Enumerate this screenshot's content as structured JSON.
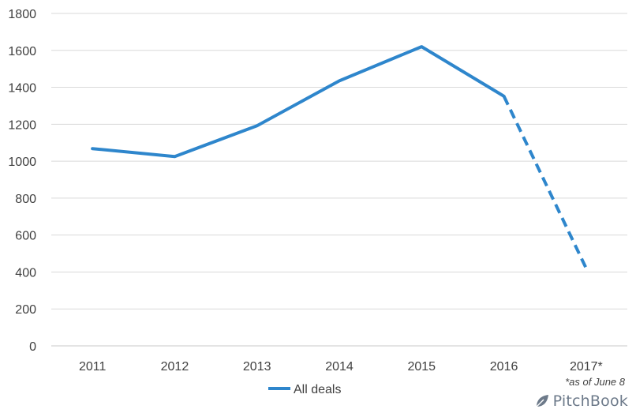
{
  "chart_data": {
    "type": "line",
    "title": "",
    "xlabel": "",
    "ylabel": "",
    "categories": [
      "2011",
      "2012",
      "2013",
      "2014",
      "2015",
      "2016",
      "2017*"
    ],
    "series": [
      {
        "name": "All deals",
        "values": [
          1068,
          1025,
          1192,
          1435,
          1620,
          1352,
          420
        ],
        "color": "#2e86cc",
        "dashed_segment": "2016 to 2017*"
      }
    ],
    "ylim": [
      0,
      1800
    ],
    "yticks": [
      0,
      200,
      400,
      600,
      800,
      1000,
      1200,
      1400,
      1600,
      1800
    ],
    "grid": true,
    "legend_position": "bottom-left",
    "annotation": "*as of June 8"
  },
  "brand": {
    "name": "PitchBook",
    "color": "#6d7a8a"
  }
}
